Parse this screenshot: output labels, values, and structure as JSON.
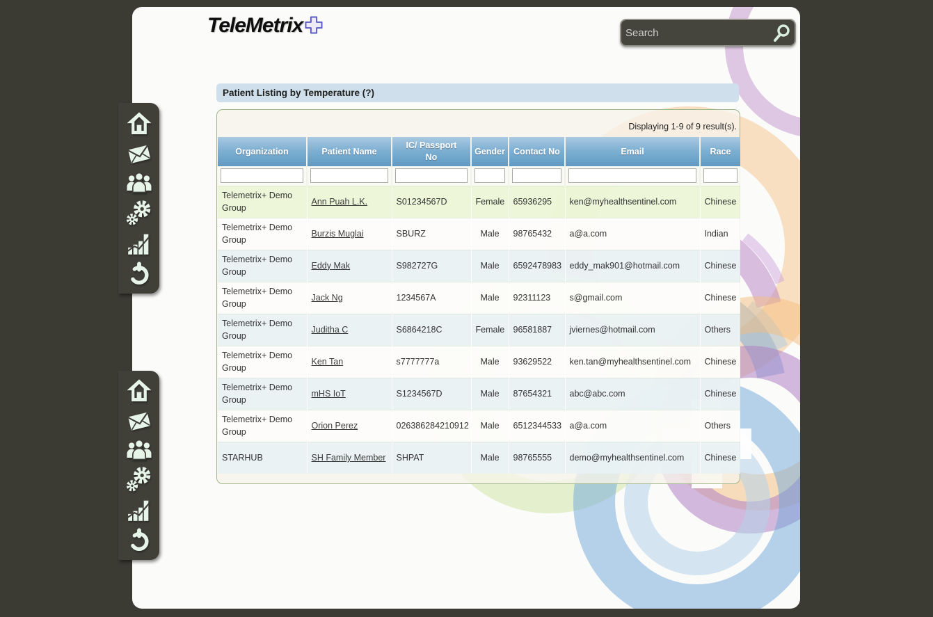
{
  "brand": {
    "name": "TeleMetrix",
    "logo_icon": "plus-cross-icon"
  },
  "search": {
    "placeholder": "Search",
    "icon": "magnifier-icon"
  },
  "sidebar": {
    "groups": [
      {
        "items": [
          "home-icon",
          "mail-icon",
          "users-icon",
          "settings-gears-icon",
          "bar-chart-icon",
          "power-icon"
        ]
      },
      {
        "items": [
          "home-icon",
          "mail-icon",
          "users-icon",
          "settings-gears-icon",
          "bar-chart-icon",
          "power-icon"
        ]
      }
    ]
  },
  "page": {
    "title": "Patient Listing by Temperature (?)"
  },
  "grid": {
    "summary": "Displaying 1-9 of 9 result(s).",
    "columns": [
      "Organization",
      "Patient Name",
      "IC/ Passport No",
      "Gender",
      "Contact No",
      "Email",
      "Race"
    ],
    "filters": [
      "",
      "",
      "",
      "",
      "",
      "",
      ""
    ],
    "rows": [
      {
        "organization": "Telemetrix+ Demo Group",
        "patient_name": "Ann Puah L.K.",
        "ic_passport": "S01234567D",
        "gender": "Female",
        "contact": "65936295",
        "email": "ken@myhealthsentinel.com",
        "race": "Chinese",
        "highlight": true
      },
      {
        "organization": "Telemetrix+ Demo Group",
        "patient_name": "Burzis Muglai",
        "ic_passport": "SBURZ",
        "gender": "Male",
        "contact": "98765432",
        "email": "a@a.com",
        "race": "Indian",
        "highlight": false
      },
      {
        "organization": "Telemetrix+ Demo Group",
        "patient_name": "Eddy Mak",
        "ic_passport": "S982727G",
        "gender": "Male",
        "contact": "6592478983",
        "email": "eddy_mak901@hotmail.com",
        "race": "Chinese",
        "highlight": false
      },
      {
        "organization": "Telemetrix+ Demo Group",
        "patient_name": "Jack Ng",
        "ic_passport": "1234567A",
        "gender": "Male",
        "contact": "92311123",
        "email": "s@gmail.com",
        "race": "Chinese",
        "highlight": false
      },
      {
        "organization": "Telemetrix+ Demo Group",
        "patient_name": "Juditha C",
        "ic_passport": "S6864218C",
        "gender": "Female",
        "contact": "96581887",
        "email": "jviernes@hotmail.com",
        "race": "Others",
        "highlight": false
      },
      {
        "organization": "Telemetrix+ Demo Group",
        "patient_name": "Ken Tan",
        "ic_passport": "s7777777a",
        "gender": "Male",
        "contact": "93629522",
        "email": "ken.tan@myhealthsentinel.com",
        "race": "Chinese",
        "highlight": false
      },
      {
        "organization": "Telemetrix+ Demo Group",
        "patient_name": "mHS IoT",
        "ic_passport": "S1234567D",
        "gender": "Male",
        "contact": "87654321",
        "email": "abc@abc.com",
        "race": "Chinese",
        "highlight": false
      },
      {
        "organization": "Telemetrix+ Demo Group",
        "patient_name": "Orion Perez",
        "ic_passport": "026386284210912",
        "gender": "Male",
        "contact": "6512344533",
        "email": "a@a.com",
        "race": "Others",
        "highlight": false
      },
      {
        "organization": "STARHUB",
        "patient_name": "SH Family Member",
        "ic_passport": "SHPAT",
        "gender": "Male",
        "contact": "98765555",
        "email": "demo@myhealthsentinel.com",
        "race": "Chinese",
        "highlight": false
      }
    ]
  },
  "colors": {
    "page_bg": "#3b3a33",
    "panel_bg": "#fbfbfa",
    "sidebar_bg": "#403f38",
    "sidebar_icon": "#e7f5e9",
    "title_bar_bg": "#cfe0ec",
    "header_gradient_top": "#a9c9e1",
    "header_gradient_bottom": "#5f9ac4",
    "row_highlight": "#ecf5d6",
    "row_alternate": "#e8f1f5",
    "table_border": "#9db687",
    "brand_plus_stroke": "#5c5cc4",
    "decor_orange": "#f3bd7e",
    "decor_purple": "#b57fc4",
    "decor_blue": "#6fa8da",
    "decor_green": "#cbe49f"
  }
}
